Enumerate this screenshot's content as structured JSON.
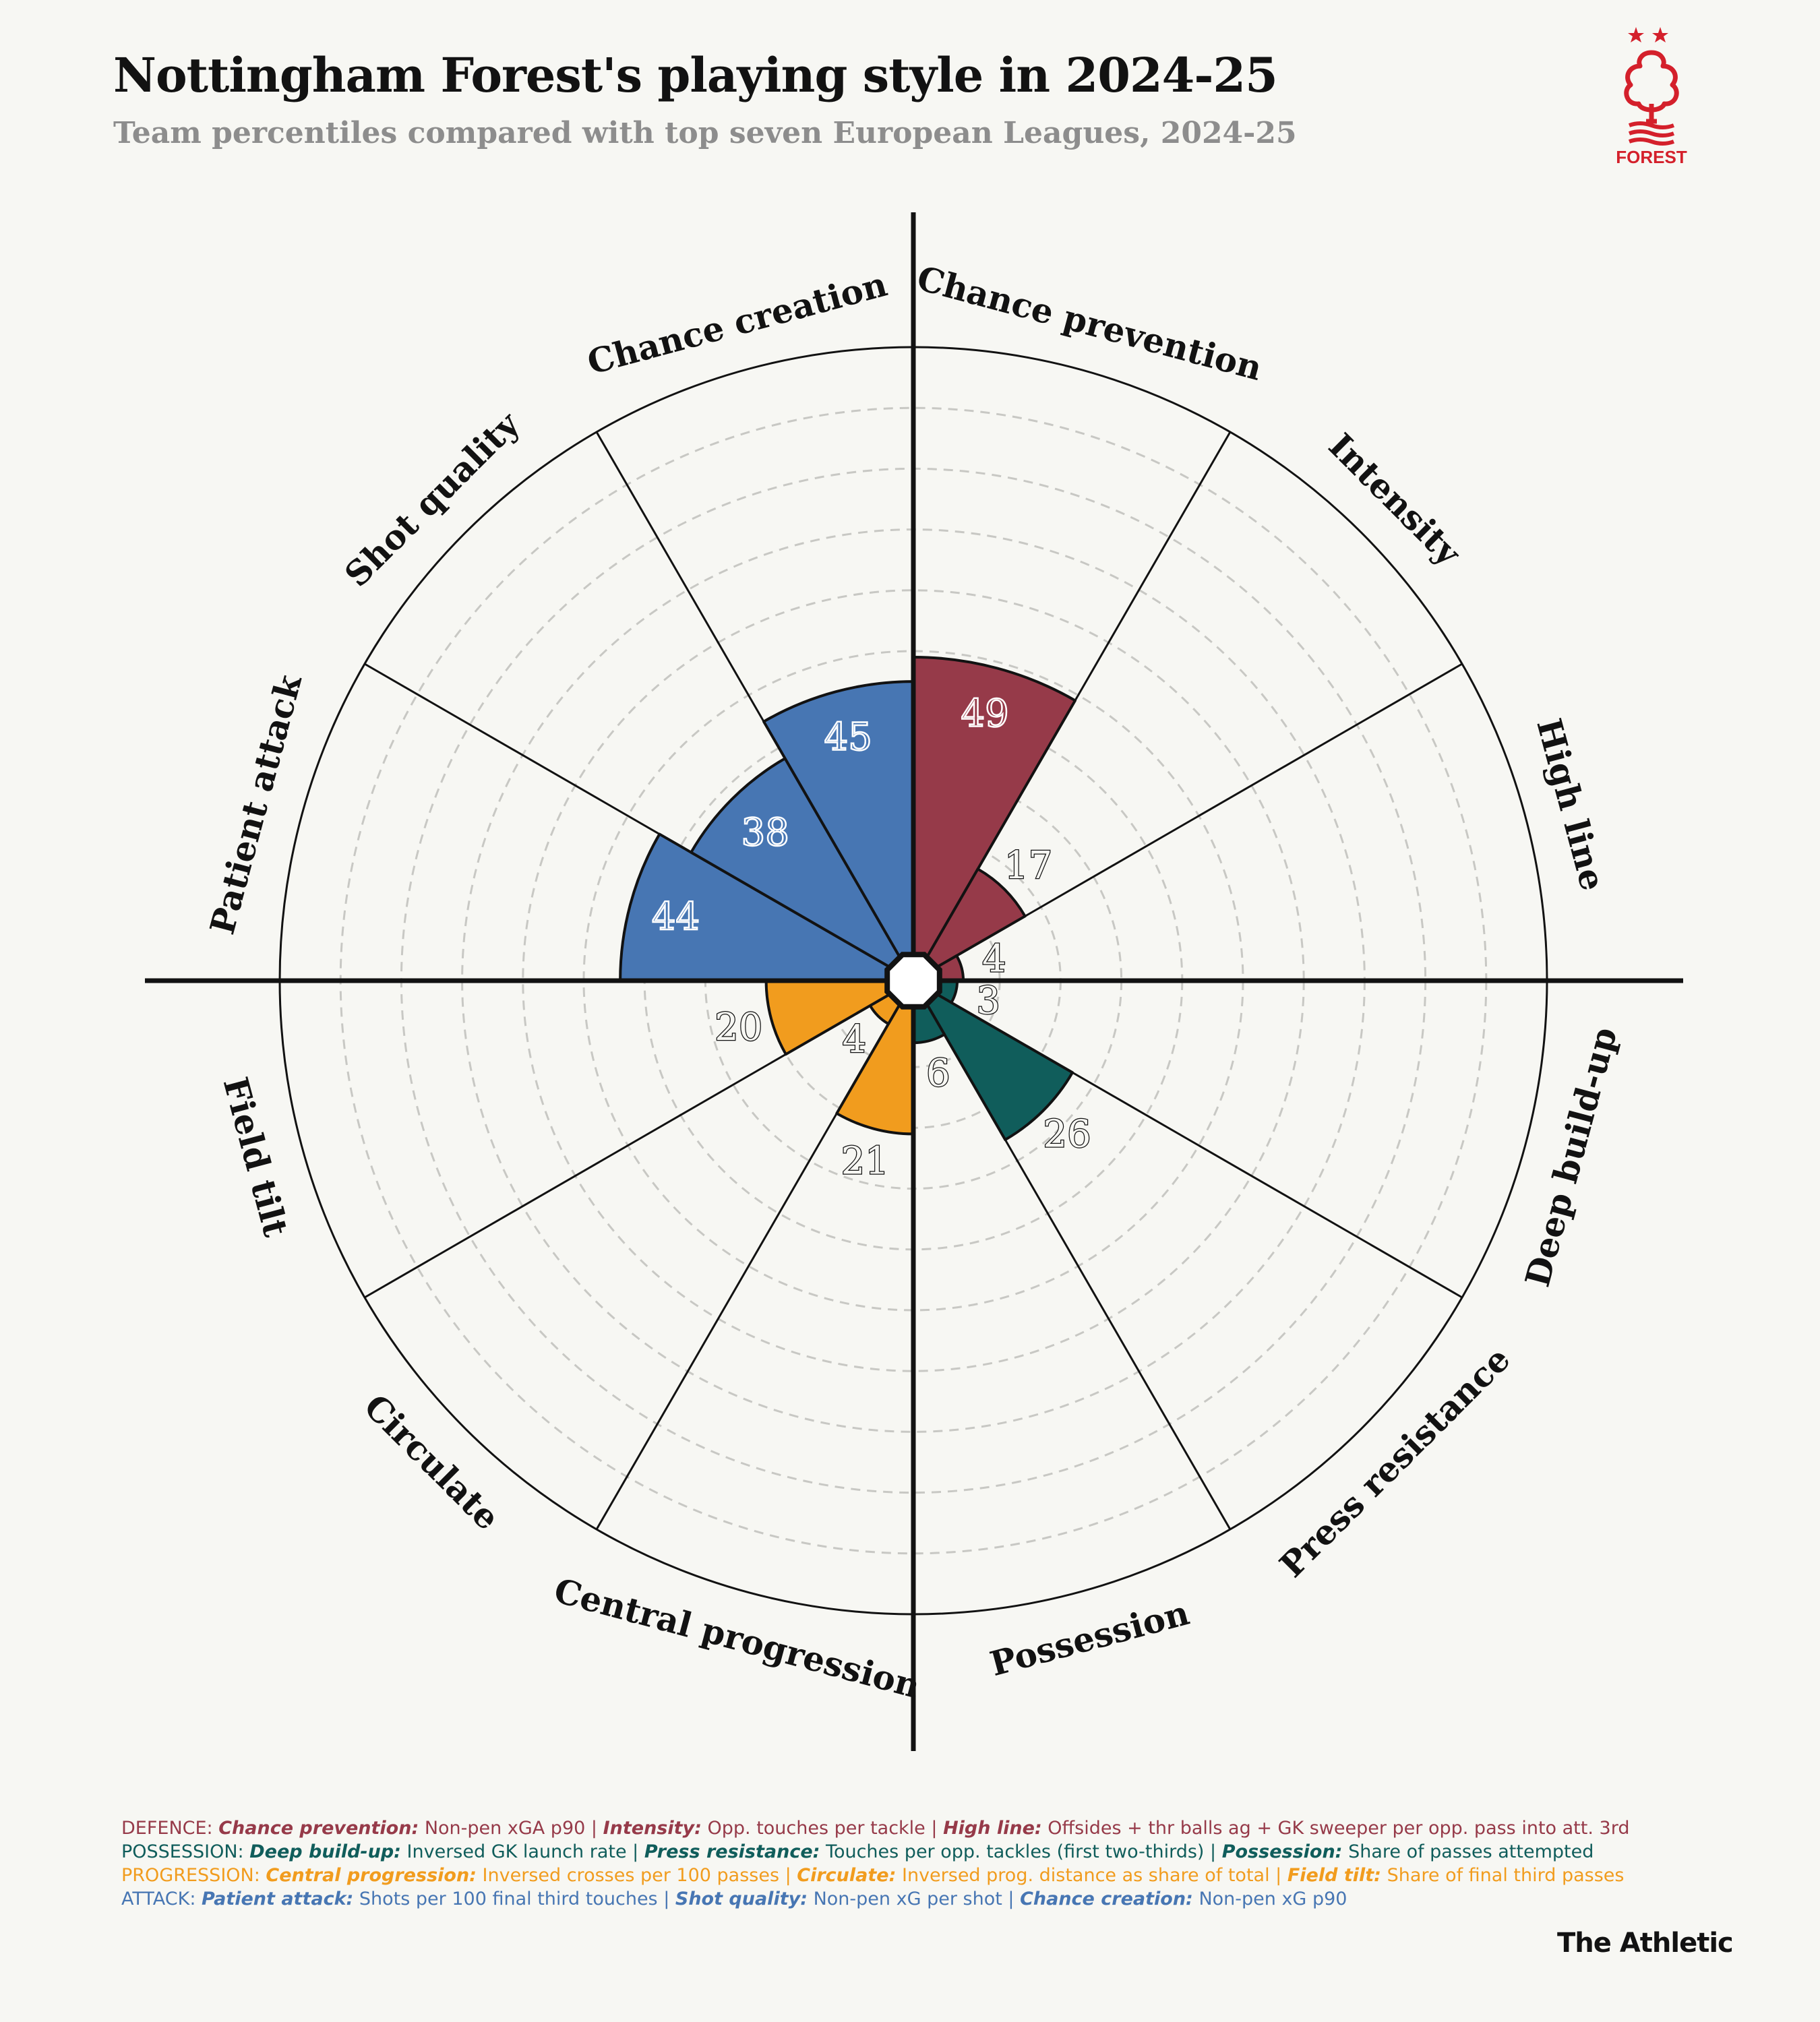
{
  "header": {
    "title": "Nottingham Forest's playing style in 2024-25",
    "subtitle": "Team percentiles compared with top seven European Leagues, 2024-25"
  },
  "logo": {
    "text": "FOREST",
    "color": "#d4202b",
    "icon": "forest-tree-crest-icon"
  },
  "chart_data": {
    "type": "polar-bar",
    "range": [
      0,
      100
    ],
    "grid": true,
    "categories": [
      {
        "label": "Chance prevention",
        "value": 49,
        "group": "defence"
      },
      {
        "label": "Intensity",
        "value": 17,
        "group": "defence"
      },
      {
        "label": "High line",
        "value": 4,
        "group": "defence"
      },
      {
        "label": "Deep build-up",
        "value": 3,
        "group": "possession"
      },
      {
        "label": "Press resistance",
        "value": 26,
        "group": "possession"
      },
      {
        "label": "Possession",
        "value": 6,
        "group": "possession"
      },
      {
        "label": "Central progression",
        "value": 21,
        "group": "progression"
      },
      {
        "label": "Circulate",
        "value": 4,
        "group": "progression"
      },
      {
        "label": "Field tilt",
        "value": 20,
        "group": "progression"
      },
      {
        "label": "Patient attack",
        "value": 44,
        "group": "attack"
      },
      {
        "label": "Shot quality",
        "value": 38,
        "group": "attack"
      },
      {
        "label": "Chance creation",
        "value": 45,
        "group": "attack"
      }
    ],
    "group_colors": {
      "defence": "#963a49",
      "possession": "#105d5b",
      "progression": "#f19c1e",
      "attack": "#4776b3"
    }
  },
  "footnote": {
    "defence": {
      "prefix": "DEFENCE: ",
      "items": [
        {
          "name": "Chance prevention:",
          "desc": " Non-pen xGA p90"
        },
        {
          "name": "Intensity:",
          "desc": " Opp. touches per tackle"
        },
        {
          "name": "High line:",
          "desc": " Offsides + thr balls ag + GK sweeper per opp. pass into att. 3rd"
        }
      ]
    },
    "possession": {
      "prefix": "POSSESSION: ",
      "items": [
        {
          "name": "Deep build-up:",
          "desc": " Inversed GK launch rate"
        },
        {
          "name": "Press resistance:",
          "desc": " Touches per opp. tackles (first two-thirds)"
        },
        {
          "name": "Possession:",
          "desc": " Share of passes attempted"
        }
      ]
    },
    "progression": {
      "prefix": "PROGRESSION: ",
      "items": [
        {
          "name": "Central progression:",
          "desc": " Inversed crosses per 100 passes"
        },
        {
          "name": "Circulate:",
          "desc": " Inversed prog. distance as share of total"
        },
        {
          "name": "Field tilt:",
          "desc": " Share of final third passes"
        }
      ]
    },
    "attack": {
      "prefix": "ATTACK: ",
      "items": [
        {
          "name": "Patient attack:",
          "desc": " Shots per 100 final third touches"
        },
        {
          "name": "Shot quality:",
          "desc": " Non-pen xG per shot"
        },
        {
          "name": "Chance creation:",
          "desc": " Non-pen xG p90"
        }
      ]
    }
  },
  "brand": "The Athletic"
}
